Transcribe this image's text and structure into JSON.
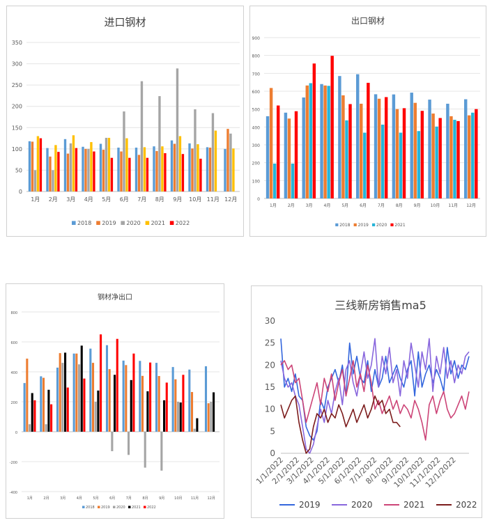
{
  "palettes": {
    "bars": [
      "#5b9bd5",
      "#ed7d31",
      "#a5a5a5",
      "#ffc000",
      "#ff0000"
    ],
    "bars_p2": [
      "#5b9bd5",
      "#ed7d31",
      "#27b4d8",
      "#ff0000"
    ],
    "bars_p3": [
      "#5b9bd5",
      "#ed7d31",
      "#a5a5a5",
      "#000000",
      "#ff0000"
    ],
    "lines": [
      "#3366dd",
      "#8866dd",
      "#cc4477",
      "#7b1b1b"
    ]
  },
  "chart_data": [
    {
      "type": "bar",
      "title": "进口钢材",
      "categories": [
        "1月",
        "2月",
        "3月",
        "4月",
        "5月",
        "6月",
        "7月",
        "8月",
        "9月",
        "10月",
        "11月",
        "12月"
      ],
      "ylim": [
        0,
        350
      ],
      "yticks": [
        0,
        50,
        100,
        150,
        200,
        250,
        300,
        350
      ],
      "legend": "bottom",
      "series": [
        {
          "name": "2018",
          "values": [
            118,
            102,
            123,
            105,
            112,
            103,
            103,
            106,
            120,
            113,
            104,
            100
          ]
        },
        {
          "name": "2019",
          "values": [
            117,
            82,
            89,
            100,
            98,
            94,
            86,
            95,
            112,
            101,
            103,
            147
          ]
        },
        {
          "name": "2020",
          "values": [
            50,
            50,
            113,
            100,
            126,
            188,
            259,
            224,
            289,
            193,
            184,
            136
          ]
        },
        {
          "name": "2021",
          "values": [
            130,
            109,
            132,
            116,
            126,
            125,
            104,
            106,
            130,
            111,
            143,
            101
          ]
        },
        {
          "name": "2022",
          "values": [
            125,
            93,
            102,
            94,
            79,
            79,
            79,
            90,
            88,
            77,
            null,
            null
          ]
        }
      ]
    },
    {
      "type": "bar",
      "title": "出口钢材",
      "categories": [
        "1月",
        "2月",
        "3月",
        "4月",
        "5月",
        "6月",
        "7月",
        "8月",
        "9月",
        "10月",
        "11月",
        "12月"
      ],
      "ylim": [
        0,
        900
      ],
      "yticks": [
        0,
        100,
        200,
        300,
        400,
        500,
        600,
        700,
        800,
        900
      ],
      "legend": "bottom",
      "series": [
        {
          "name": "2018",
          "values": [
            460,
            480,
            565,
            640,
            685,
            695,
            583,
            582,
            592,
            553,
            530,
            555
          ]
        },
        {
          "name": "2019",
          "values": [
            618,
            447,
            632,
            632,
            577,
            530,
            558,
            500,
            535,
            475,
            460,
            465
          ]
        },
        {
          "name": "2020",
          "values": [
            195,
            195,
            645,
            630,
            437,
            368,
            413,
            368,
            377,
            402,
            440,
            480
          ]
        },
        {
          "name": "2021",
          "values": [
            520,
            488,
            755,
            798,
            528,
            647,
            567,
            505,
            490,
            450,
            433,
            500
          ]
        }
      ]
    },
    {
      "type": "bar",
      "title": "钢材净出口",
      "categories": [
        "1月",
        "2月",
        "3月",
        "4月",
        "5月",
        "6月",
        "7月",
        "8月",
        "9月",
        "10月",
        "11月",
        "12月"
      ],
      "ylim": [
        -400,
        800
      ],
      "yticks": [
        -400,
        -200,
        0,
        200,
        400,
        600,
        800
      ],
      "legend": "bottom",
      "series": [
        {
          "name": "2018",
          "values": [
            325,
            370,
            428,
            522,
            555,
            578,
            475,
            473,
            460,
            432,
            415,
            437
          ]
        },
        {
          "name": "2019",
          "values": [
            488,
            360,
            525,
            522,
            460,
            418,
            445,
            373,
            372,
            350,
            265,
            190
          ]
        },
        {
          "name": "2020",
          "values": [
            50,
            50,
            460,
            450,
            200,
            -130,
            -155,
            -240,
            -260,
            200,
            20,
            200
          ]
        },
        {
          "name": "2021",
          "values": [
            258,
            280,
            528,
            575,
            275,
            380,
            345,
            270,
            210,
            195,
            90,
            263
          ]
        },
        {
          "name": "2022",
          "values": [
            210,
            183,
            295,
            355,
            650,
            620,
            522,
            462,
            328,
            380,
            null,
            null
          ]
        }
      ]
    },
    {
      "type": "line",
      "title": "三线新房销售ma5",
      "x_tick_labels": [
        "1/1/2022",
        "2/1/2022",
        "3/1/2022",
        "4/1/2022",
        "5/1/2022",
        "6/1/2022",
        "7/1/2022",
        "8/1/2022",
        "9/1/2022",
        "10/1/2022",
        "11/1/2022",
        "12/1/2022"
      ],
      "ylim": [
        0,
        30
      ],
      "yticks": [
        0,
        5,
        10,
        15,
        20,
        25,
        30
      ],
      "legend": "bottom",
      "series": [
        {
          "name": "2019",
          "days": [
            1,
            8,
            15,
            22,
            29,
            36,
            43,
            50,
            57,
            64,
            71,
            78,
            85,
            92,
            99,
            106,
            113,
            120,
            127,
            134,
            141,
            148,
            155,
            162,
            169,
            176,
            183,
            190,
            197,
            204,
            211,
            218,
            225,
            232,
            239,
            246,
            253,
            260,
            267,
            274,
            281,
            288,
            295,
            302,
            309,
            316,
            323,
            330,
            337,
            344,
            351,
            358,
            365
          ],
          "values": [
            26,
            15,
            17,
            14,
            18,
            13,
            12,
            6,
            4,
            3,
            5,
            12,
            10,
            15,
            17,
            19,
            16,
            20,
            13,
            25,
            18,
            22,
            17,
            16,
            21,
            14,
            19,
            15,
            17,
            22,
            16,
            18,
            20,
            17,
            15,
            19,
            21,
            13,
            23,
            15,
            18,
            20,
            16,
            19,
            17,
            14,
            24,
            18,
            21,
            17,
            20,
            19,
            22
          ]
        },
        {
          "name": "2020",
          "days": [
            1,
            8,
            15,
            22,
            29,
            36,
            43,
            50,
            57,
            64,
            71,
            78,
            85,
            92,
            99,
            106,
            113,
            120,
            127,
            134,
            141,
            148,
            155,
            162,
            169,
            176,
            183,
            190,
            197,
            204,
            211,
            218,
            225,
            232,
            239,
            246,
            253,
            260,
            267,
            274,
            281,
            288,
            295,
            302,
            309,
            316,
            323,
            330,
            337,
            344,
            351,
            358,
            365
          ],
          "values": [
            21,
            17,
            15,
            16,
            13,
            11,
            6,
            1,
            0,
            2,
            6,
            10,
            7,
            12,
            9,
            14,
            17,
            11,
            19,
            21,
            16,
            13,
            18,
            23,
            17,
            20,
            26,
            15,
            22,
            18,
            24,
            16,
            19,
            13,
            21,
            17,
            25,
            20,
            15,
            23,
            19,
            26,
            14,
            22,
            18,
            24,
            17,
            21,
            16,
            20,
            18,
            22,
            23
          ]
        },
        {
          "name": "2021",
          "days": [
            1,
            8,
            15,
            22,
            29,
            36,
            43,
            50,
            57,
            64,
            71,
            78,
            85,
            92,
            99,
            106,
            113,
            120,
            127,
            134,
            141,
            148,
            155,
            162,
            169,
            176,
            183,
            190,
            197,
            204,
            211,
            218,
            225,
            232,
            239,
            246,
            253,
            260,
            267,
            274,
            281,
            288,
            295,
            302,
            309,
            316,
            323,
            330,
            337,
            344,
            351,
            358,
            365
          ],
          "values": [
            20,
            21,
            19,
            20,
            16,
            17,
            12,
            7,
            10,
            13,
            16,
            11,
            17,
            14,
            18,
            12,
            16,
            19,
            13,
            17,
            21,
            15,
            18,
            14,
            20,
            16,
            10,
            12,
            9,
            11,
            13,
            10,
            12,
            9,
            11,
            10,
            8,
            12,
            10,
            7,
            3,
            11,
            13,
            9,
            12,
            14,
            10,
            8,
            9,
            11,
            13,
            10,
            14
          ]
        },
        {
          "name": "2022",
          "days": [
            1,
            8,
            15,
            22,
            29,
            36,
            43,
            50,
            57,
            64,
            71,
            78,
            85,
            92,
            99,
            106,
            113,
            120,
            127,
            134,
            141,
            148,
            155,
            162,
            169,
            176,
            183,
            190,
            197,
            204,
            211,
            218,
            225,
            232
          ],
          "values": [
            11,
            8,
            10,
            12,
            13,
            7,
            3,
            0,
            1,
            6,
            9,
            8,
            10,
            7,
            9,
            8,
            11,
            9,
            6,
            8,
            10,
            7,
            9,
            11,
            8,
            10,
            13,
            11,
            12,
            9,
            10,
            7,
            7,
            6
          ]
        }
      ]
    }
  ]
}
